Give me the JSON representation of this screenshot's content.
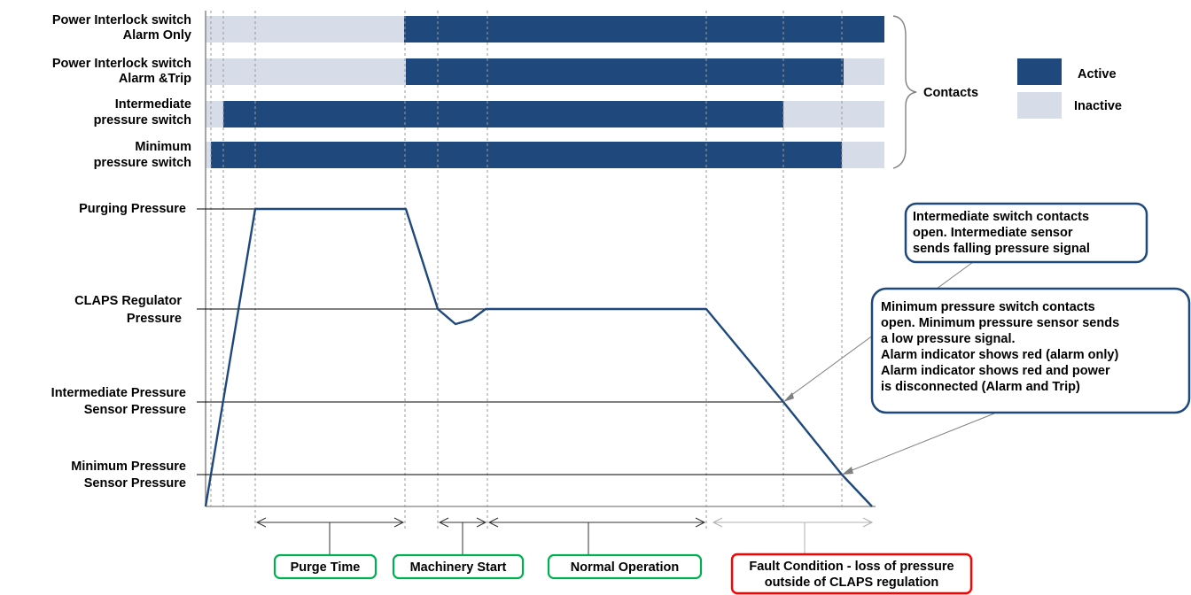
{
  "colors": {
    "active": "#1f497d",
    "inactive": "#d6dde8",
    "trace": "#1f497d",
    "phase_green": "#00b050",
    "phase_red": "#ff0000",
    "callout_border": "#1f497d"
  },
  "contacts": {
    "rows": [
      {
        "label_line1": "Power Interlock switch",
        "label_line2": "Alarm Only"
      },
      {
        "label_line1": "Power Interlock switch",
        "label_line2": "Alarm &Trip"
      },
      {
        "label_line1": "Intermediate",
        "label_line2": "pressure switch"
      },
      {
        "label_line1": "Minimum",
        "label_line2": "pressure switch"
      }
    ],
    "group_label": "Contacts",
    "legend": {
      "active": "Active",
      "inactive": "Inactive"
    }
  },
  "pressure_levels": {
    "purging": "Purging Pressure",
    "claps_line1": "CLAPS Regulator",
    "claps_line2": "Pressure",
    "intermediate_line1": "Intermediate Pressure",
    "intermediate_line2": "Sensor Pressure",
    "minimum_line1": "Minimum Pressure",
    "minimum_line2": "Sensor Pressure"
  },
  "phases": {
    "purge": "Purge Time",
    "machinery": "Machinery Start",
    "normal": "Normal Operation",
    "fault_line1": "Fault Condition - loss of pressure",
    "fault_line2": "outside of CLAPS regulation"
  },
  "callouts": {
    "intermediate": {
      "line1": "Intermediate switch contacts",
      "line2": "open. Intermediate sensor",
      "line3": "sends falling pressure signal"
    },
    "minimum": {
      "line1": "Minimum pressure switch contacts",
      "line2": "open. Minimum pressure sensor sends",
      "line3": "a low pressure signal.",
      "line4": "Alarm indicator shows red (alarm only)",
      "line5": "Alarm indicator shows red and power",
      "line6": "is disconnected (Alarm and Trip)"
    }
  }
}
